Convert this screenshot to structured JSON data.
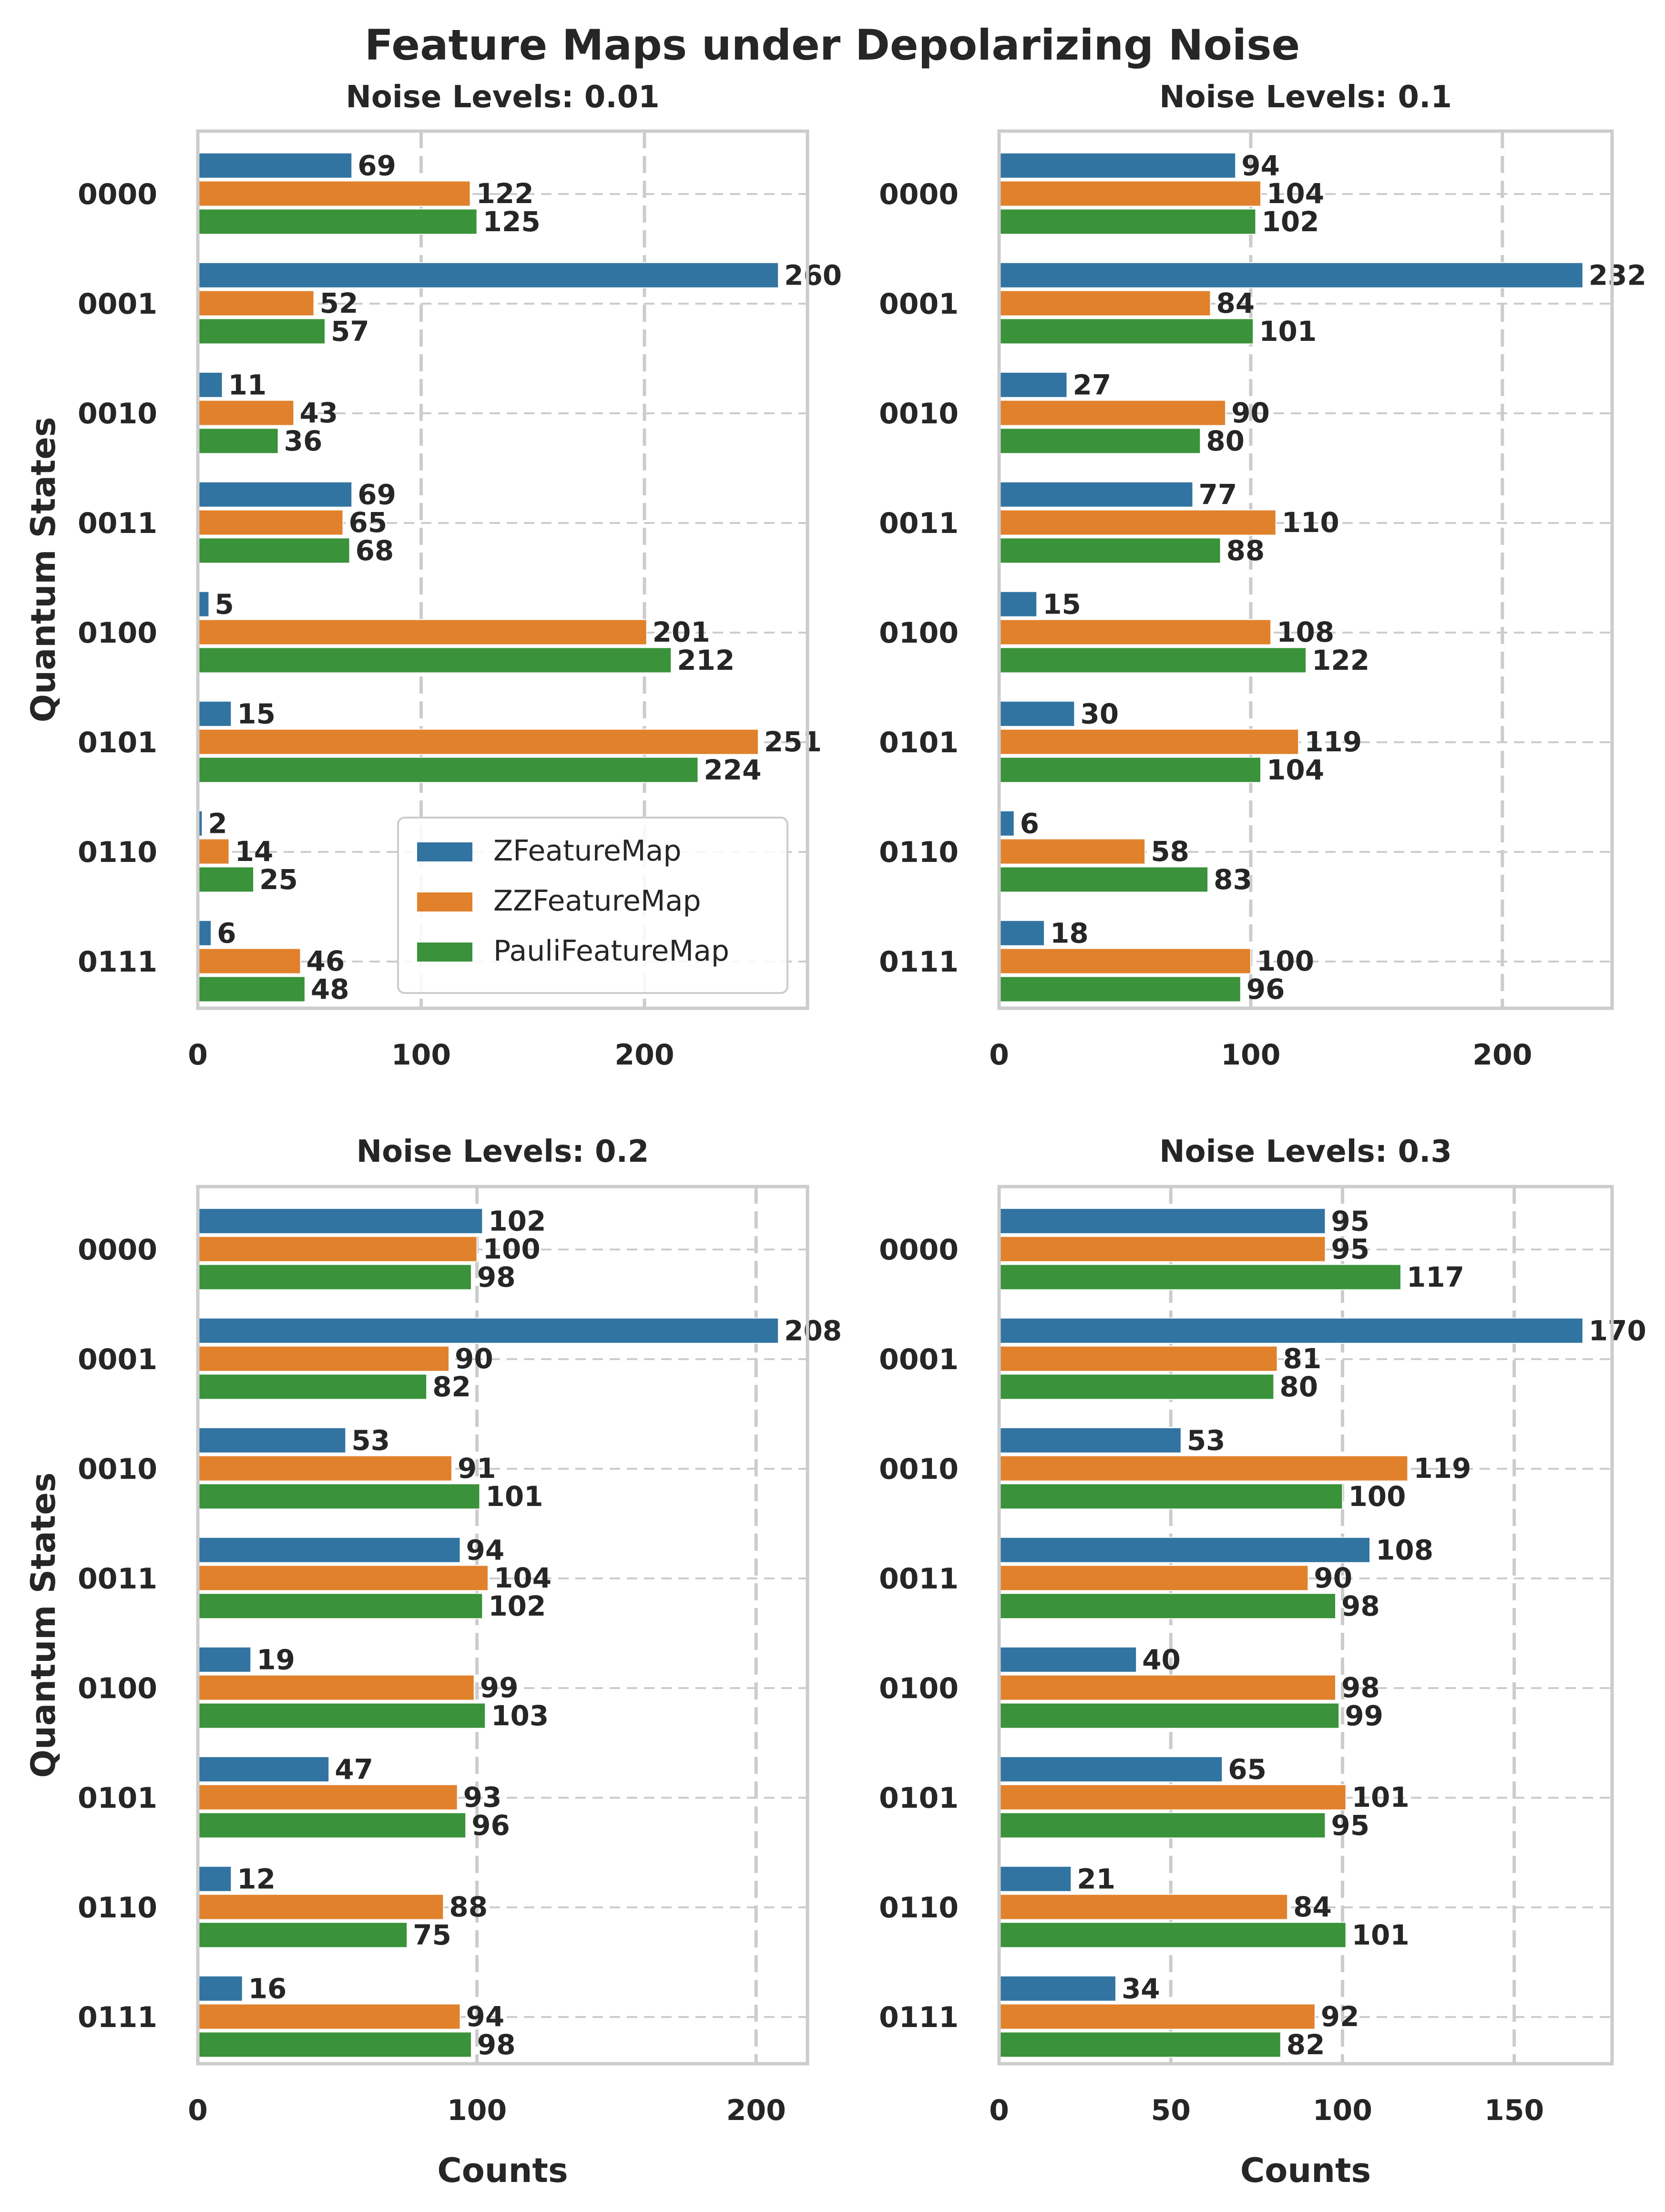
{
  "figure_title": "Feature Maps under Depolarizing Noise",
  "colors": {
    "ZFeatureMap": "#3274a1",
    "ZZFeatureMap": "#e1812c",
    "PauliFeatureMap": "#3a923a",
    "grid": "#cccccc",
    "spine": "#cccccc"
  },
  "legend": {
    "location": "lower-right of first panel",
    "entries": [
      "ZFeatureMap",
      "ZZFeatureMap",
      "PauliFeatureMap"
    ]
  },
  "chart_data": [
    {
      "type": "bar",
      "orientation": "horizontal",
      "title": "Noise Levels: 0.01",
      "xlabel": "",
      "ylabel": "Quantum States",
      "xlim": [
        0,
        273
      ],
      "xticks": [
        0,
        100,
        200
      ],
      "categories": [
        "0000",
        "0001",
        "0010",
        "0011",
        "0100",
        "0101",
        "0110",
        "0111"
      ],
      "series": [
        {
          "name": "ZFeatureMap",
          "values": [
            69,
            260,
            11,
            69,
            5,
            15,
            2,
            6
          ]
        },
        {
          "name": "ZZFeatureMap",
          "values": [
            122,
            52,
            43,
            65,
            201,
            251,
            14,
            46
          ]
        },
        {
          "name": "PauliFeatureMap",
          "values": [
            125,
            57,
            36,
            68,
            212,
            224,
            25,
            48
          ]
        }
      ],
      "legend": true
    },
    {
      "type": "bar",
      "orientation": "horizontal",
      "title": "Noise Levels: 0.1",
      "xlabel": "",
      "ylabel": "",
      "xlim": [
        0,
        243.6
      ],
      "xticks": [
        0,
        100,
        200
      ],
      "categories": [
        "0000",
        "0001",
        "0010",
        "0011",
        "0100",
        "0101",
        "0110",
        "0111"
      ],
      "series": [
        {
          "name": "ZFeatureMap",
          "values": [
            94,
            232,
            27,
            77,
            15,
            30,
            6,
            18
          ]
        },
        {
          "name": "ZZFeatureMap",
          "values": [
            104,
            84,
            90,
            110,
            108,
            119,
            58,
            100
          ]
        },
        {
          "name": "PauliFeatureMap",
          "values": [
            102,
            101,
            80,
            88,
            122,
            104,
            83,
            96
          ]
        }
      ],
      "legend": false
    },
    {
      "type": "bar",
      "orientation": "horizontal",
      "title": "Noise Levels: 0.2",
      "xlabel": "Counts",
      "ylabel": "Quantum States",
      "xlim": [
        0,
        218.4
      ],
      "xticks": [
        0,
        100,
        200
      ],
      "categories": [
        "0000",
        "0001",
        "0010",
        "0011",
        "0100",
        "0101",
        "0110",
        "0111"
      ],
      "series": [
        {
          "name": "ZFeatureMap",
          "values": [
            102,
            208,
            53,
            94,
            19,
            47,
            12,
            16
          ]
        },
        {
          "name": "ZZFeatureMap",
          "values": [
            100,
            90,
            91,
            104,
            99,
            93,
            88,
            94
          ]
        },
        {
          "name": "PauliFeatureMap",
          "values": [
            98,
            82,
            101,
            102,
            103,
            96,
            75,
            98
          ]
        }
      ],
      "legend": false
    },
    {
      "type": "bar",
      "orientation": "horizontal",
      "title": "Noise Levels: 0.3",
      "xlabel": "Counts",
      "ylabel": "",
      "xlim": [
        0,
        178.5
      ],
      "xticks": [
        0,
        50,
        100,
        150
      ],
      "categories": [
        "0000",
        "0001",
        "0010",
        "0011",
        "0100",
        "0101",
        "0110",
        "0111"
      ],
      "series": [
        {
          "name": "ZFeatureMap",
          "values": [
            95,
            170,
            53,
            108,
            40,
            65,
            21,
            34
          ]
        },
        {
          "name": "ZZFeatureMap",
          "values": [
            95,
            81,
            119,
            90,
            98,
            101,
            84,
            92
          ]
        },
        {
          "name": "PauliFeatureMap",
          "values": [
            117,
            80,
            100,
            98,
            99,
            95,
            101,
            82
          ]
        }
      ],
      "legend": false
    }
  ]
}
